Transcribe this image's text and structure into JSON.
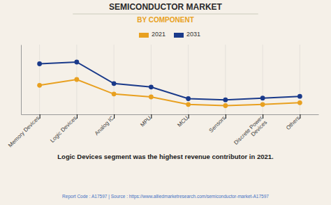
{
  "chart_data": {
    "type": "line",
    "title": "SEMICONDUCTOR MARKET",
    "subtitle": "BY COMPONENT",
    "categories": [
      "Memory Devices",
      "Logic Devices",
      "Analog IC",
      "MPU",
      "MCU",
      "Sensors",
      "Discrete Power\nDevices",
      "Others"
    ],
    "series": [
      {
        "name": "2021",
        "color": "#E8A020",
        "values": [
          5.5,
          6.5,
          4.0,
          3.5,
          2.2,
          2.0,
          2.2,
          2.5
        ]
      },
      {
        "name": "2031",
        "color": "#1A3A8A",
        "values": [
          9.2,
          9.5,
          5.8,
          5.2,
          3.2,
          3.0,
          3.3,
          3.6
        ]
      }
    ],
    "ylim": [
      0.5,
      12.5
    ],
    "yticks": [],
    "grid": true,
    "tick_labels": "x",
    "marker": "circle",
    "legend": "top",
    "annotations": [
      "Logic Devices segment was the highest revenue contributor in 2021.",
      "Report Code : A17597  |  Source : https://www.alliedmarketresearch.com/semiconductor-market-A17597"
    ]
  }
}
